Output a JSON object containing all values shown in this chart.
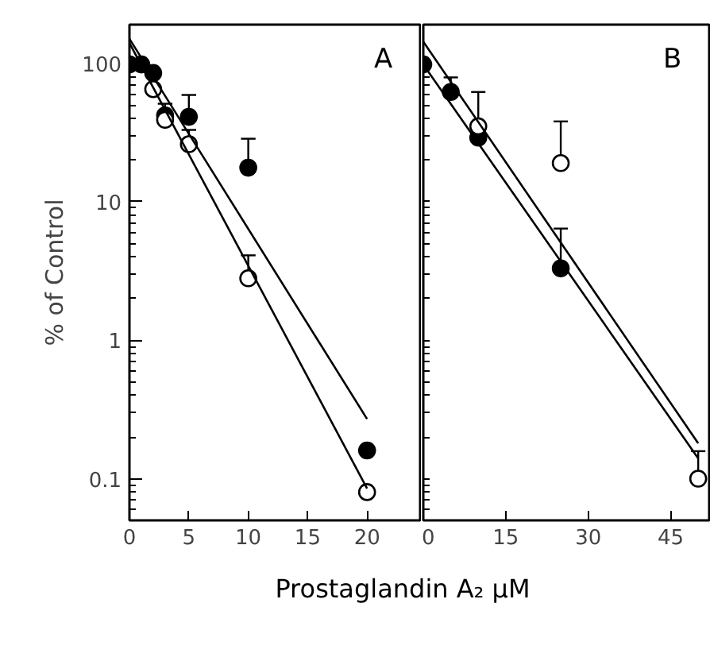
{
  "chart_data": [
    {
      "type": "scatter",
      "ylabel": "% of Control",
      "xlabel": "Prostaglandin A₂ μM",
      "log": true,
      "xlim": [
        0,
        24.6
      ],
      "xticks": [
        0,
        5,
        10,
        15,
        20
      ],
      "ylim": [
        0.05,
        190
      ],
      "yticks": [
        100,
        10,
        1,
        0.1
      ],
      "grid": false,
      "annotations": [
        "A"
      ],
      "series": [
        {
          "color": "#000000",
          "marker": "circle",
          "x": [
            0,
            1,
            2,
            3,
            5,
            10,
            20
          ],
          "values": [
            98,
            98,
            85,
            42,
            41,
            17.6,
            0.16
          ],
          "errors": [
            null,
            null,
            null,
            [
              42,
              51
            ],
            [
              41,
              59
            ],
            [
              17.6,
              28.5
            ],
            null
          ]
        },
        {
          "color": "#ffffff",
          "marker": "circle",
          "x": [
            2,
            3,
            5,
            10,
            20
          ],
          "values": [
            65,
            39,
            26,
            2.8,
            0.08
          ],
          "errors": [
            null,
            null,
            [
              26,
              33
            ],
            [
              2.8,
              4.1
            ],
            null
          ]
        },
        {
          "type": "line",
          "color": "#000000",
          "x": [
            0,
            20
          ],
          "values": [
            150,
            0.27
          ]
        },
        {
          "type": "line",
          "color": "#000000",
          "x": [
            0,
            20
          ],
          "values": [
            140,
            0.085
          ]
        }
      ]
    },
    {
      "type": "scatter",
      "log": true,
      "xlim": [
        0,
        52
      ],
      "xticks": [
        0,
        15,
        30,
        45
      ],
      "ylim": [
        0.05,
        190
      ],
      "tick_labels": "x",
      "grid": false,
      "annotations": [
        "B"
      ],
      "series": [
        {
          "color": "#000000",
          "marker": "circle",
          "x": [
            0,
            5,
            10,
            25
          ],
          "values": [
            98,
            62,
            29,
            3.3
          ],
          "errors": [
            null,
            [
              62,
              79
            ],
            null,
            [
              3.3,
              6.4
            ]
          ]
        },
        {
          "color": "#ffffff",
          "marker": "circle",
          "x": [
            10,
            25,
            50
          ],
          "values": [
            35,
            19,
            0.1
          ],
          "errors": [
            [
              35,
              62
            ],
            [
              19,
              38
            ],
            [
              0.1,
              0.158
            ]
          ]
        },
        {
          "type": "line",
          "color": "#000000",
          "x": [
            0,
            50
          ],
          "values": [
            143,
            0.18
          ]
        },
        {
          "type": "line",
          "color": "#000000",
          "x": [
            0,
            50
          ],
          "values": [
            98,
            0.14
          ]
        }
      ]
    }
  ]
}
